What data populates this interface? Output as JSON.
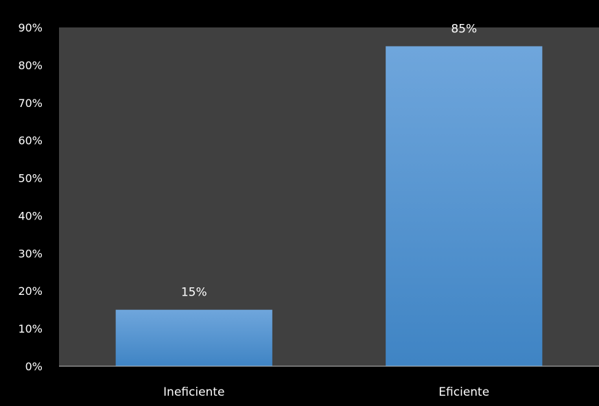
{
  "chart_data": {
    "type": "bar",
    "categories": [
      "Ineficiente",
      "Eficiente"
    ],
    "values": [
      15,
      85
    ],
    "data_labels": [
      "15%",
      "85%"
    ],
    "title": "",
    "xlabel": "",
    "ylabel": "",
    "ylim": [
      0,
      90
    ],
    "y_tick_step": 10,
    "y_tick_labels": [
      "0%",
      "10%",
      "20%",
      "30%",
      "40%",
      "50%",
      "60%",
      "70%",
      "80%",
      "90%"
    ],
    "grid": false,
    "legend": "none",
    "colors": {
      "background": "#000000",
      "plot_background": "#404040",
      "bar_top": "#6fa6dc",
      "bar_bottom": "#3f84c4",
      "axis_line": "#bfbfbf",
      "text": "#ffffff"
    }
  }
}
